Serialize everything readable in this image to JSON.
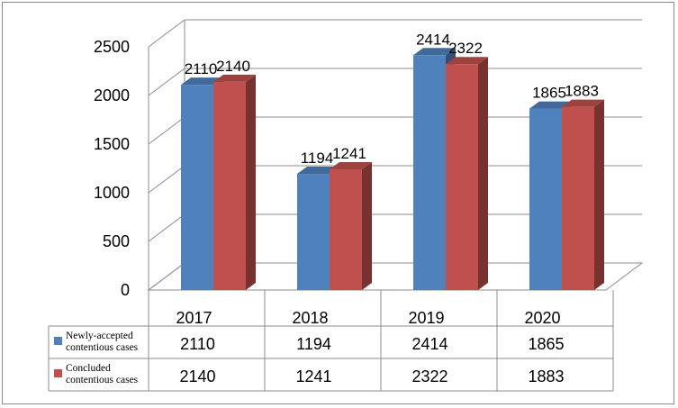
{
  "chart_data": {
    "type": "bar",
    "title": "",
    "xlabel": "",
    "ylabel": "",
    "ylim": [
      0,
      2500
    ],
    "yticks": [
      0,
      500,
      1000,
      1500,
      2000,
      2500
    ],
    "grid": true,
    "legend": "data-table",
    "categories": [
      "2017",
      "2018",
      "2019",
      "2020"
    ],
    "series": [
      {
        "name_lines": [
          "Newly-accepted",
          "contentious cases"
        ],
        "color": "#4F81BD",
        "values": [
          2110,
          1194,
          2414,
          1865
        ]
      },
      {
        "name_lines": [
          "Concluded",
          "contentious cases"
        ],
        "color": "#C0504D",
        "values": [
          2140,
          1241,
          2322,
          1883
        ]
      }
    ]
  }
}
